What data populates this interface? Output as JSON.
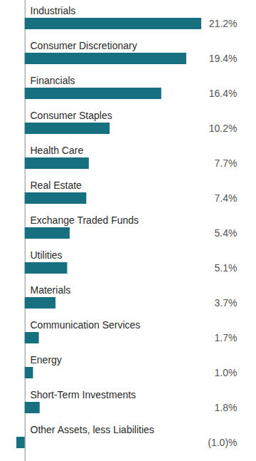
{
  "chart_data": {
    "type": "bar",
    "orientation": "horizontal",
    "categories": [
      "Industrials",
      "Consumer Discretionary",
      "Financials",
      "Consumer Staples",
      "Health Care",
      "Real Estate",
      "Exchange Traded Funds",
      "Utilities",
      "Materials",
      "Communication Services",
      "Energy",
      "Short-Term Investments",
      "Other Assets, less Liabilities"
    ],
    "values": [
      21.2,
      19.4,
      16.4,
      10.2,
      7.7,
      7.4,
      5.4,
      5.1,
      3.7,
      1.7,
      1.0,
      1.8,
      -1.0
    ],
    "value_labels": [
      "21.2%",
      "19.4%",
      "16.4%",
      "10.2%",
      "7.7%",
      "7.4%",
      "5.4%",
      "5.1%",
      "3.7%",
      "1.7%",
      "1.0%",
      "1.8%",
      "(1.0)%"
    ],
    "color": "#17707f",
    "xlim": [
      -1.0,
      21.2
    ],
    "xticks": [
      0
    ],
    "tick_labels": false,
    "data_labels": true
  }
}
